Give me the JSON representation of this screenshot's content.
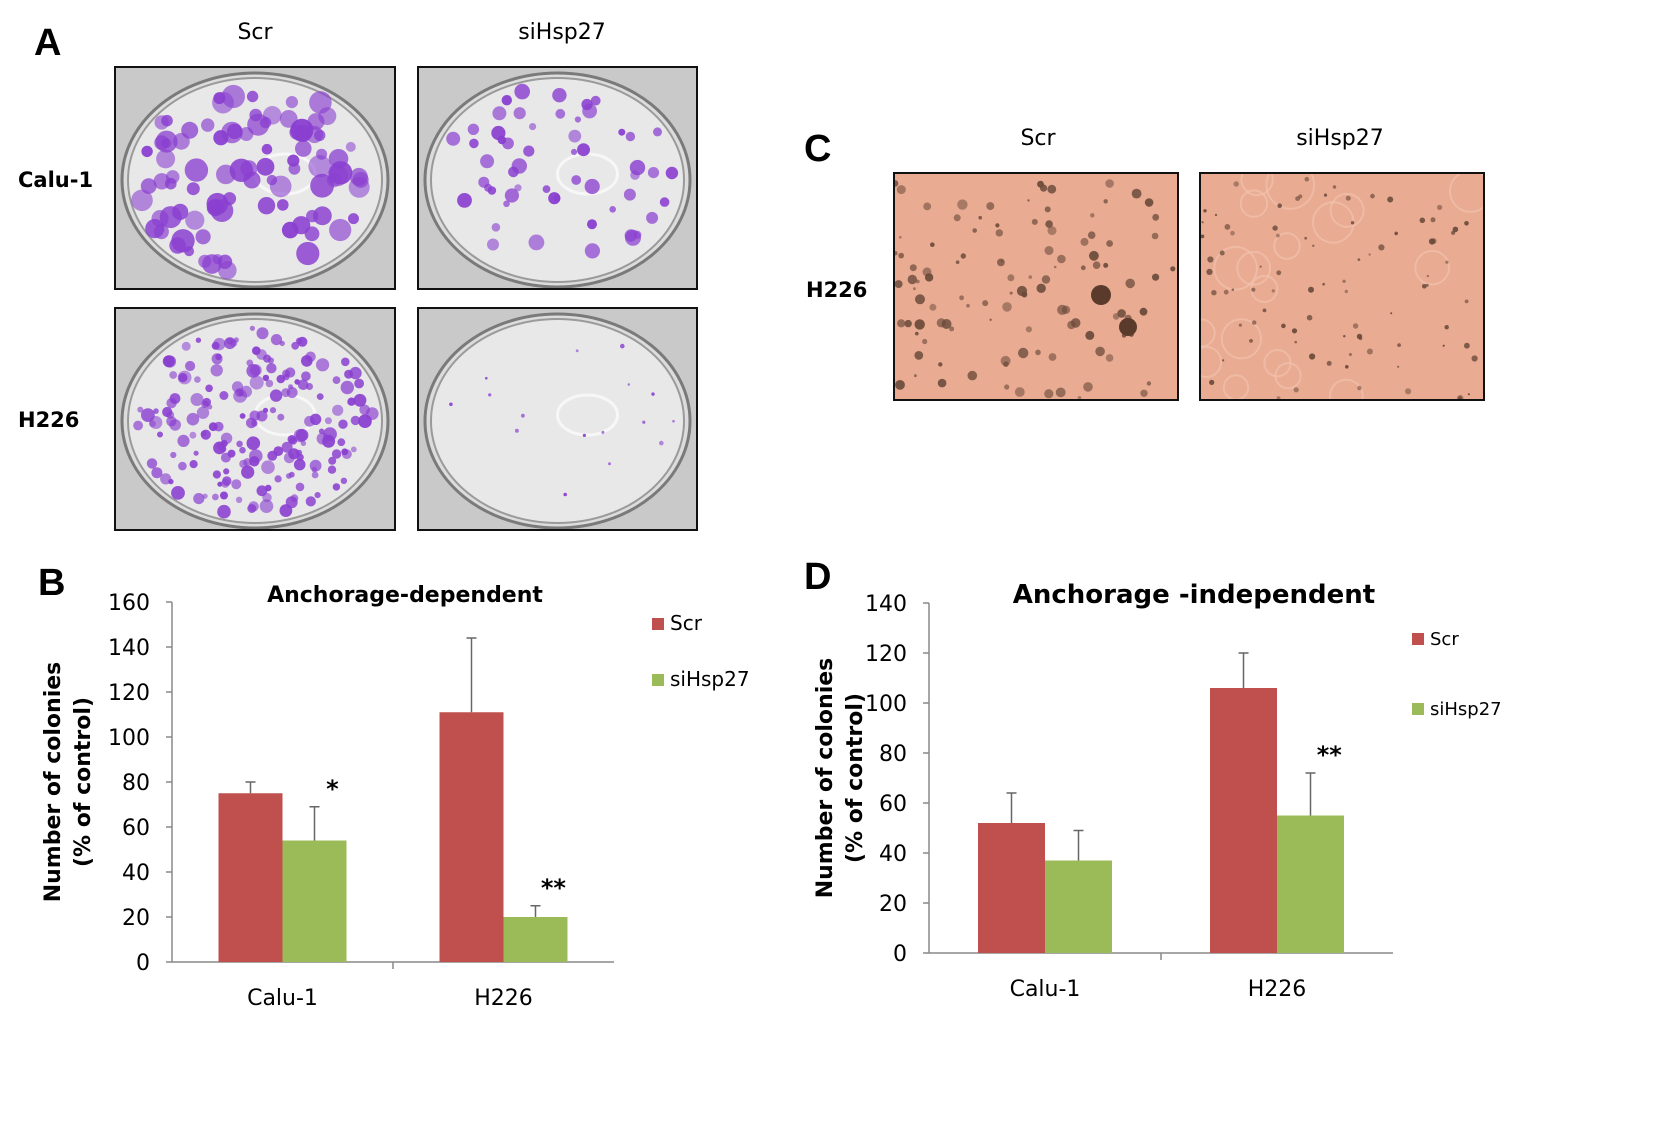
{
  "panel_a": {
    "letter": "A",
    "columns": [
      "Scr",
      "siHsp27"
    ],
    "rows": [
      "Calu-1",
      "H226"
    ],
    "stain_color": "#8a3fd0"
  },
  "panel_c": {
    "letter": "C",
    "columns": [
      "Scr",
      "siHsp27"
    ],
    "rows": [
      "H226"
    ],
    "background_color": "#e9ab92"
  },
  "chart_data": [
    {
      "panel": "B",
      "type": "bar",
      "title": "Anchorage-dependent",
      "ylabel": "Number of colonies\n(% of control)",
      "xlabel": "",
      "categories": [
        "Calu-1",
        "H226"
      ],
      "ylim": [
        0,
        160
      ],
      "yticks": [
        0,
        20,
        40,
        60,
        80,
        100,
        120,
        140,
        160
      ],
      "series": [
        {
          "name": "Scr",
          "color": "#c0504d",
          "values": [
            75,
            111
          ],
          "errors": [
            5,
            33
          ]
        },
        {
          "name": "siHsp27",
          "color": "#9bbb59",
          "values": [
            54,
            20
          ],
          "errors": [
            15,
            5
          ]
        }
      ],
      "annotations": [
        {
          "category": "Calu-1",
          "series": "siHsp27",
          "text": "*"
        },
        {
          "category": "H226",
          "series": "siHsp27",
          "text": "**"
        }
      ],
      "grid": false,
      "legend": "right"
    },
    {
      "panel": "D",
      "type": "bar",
      "title": "Anchorage -independent",
      "ylabel": "Number of colonies\n(% of control)",
      "xlabel": "",
      "categories": [
        "Calu-1",
        "H226"
      ],
      "ylim": [
        0,
        140
      ],
      "yticks": [
        0,
        20,
        40,
        60,
        80,
        100,
        120,
        140
      ],
      "series": [
        {
          "name": "Scr",
          "color": "#c0504d",
          "values": [
            52,
            106
          ],
          "errors": [
            12,
            14
          ]
        },
        {
          "name": "siHsp27",
          "color": "#9bbb59",
          "values": [
            37,
            55
          ],
          "errors": [
            12,
            17
          ]
        }
      ],
      "annotations": [
        {
          "category": "H226",
          "series": "siHsp27",
          "text": "**"
        }
      ],
      "grid": false,
      "legend": "right"
    }
  ]
}
